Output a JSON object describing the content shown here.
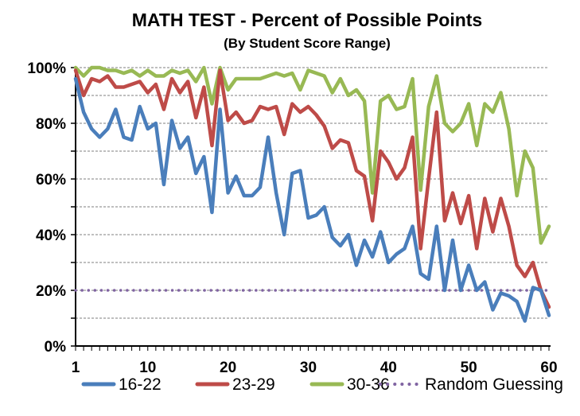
{
  "chart_data": {
    "type": "line",
    "title": "MATH TEST - Percent of Possible Points",
    "subtitle": "(By Student Score Range)",
    "xlabel": "",
    "ylabel": "",
    "xlim": [
      1,
      60
    ],
    "ylim": [
      0,
      100
    ],
    "x_ticks": [
      1,
      10,
      20,
      30,
      40,
      50,
      60
    ],
    "y_ticks": [
      0,
      20,
      40,
      60,
      80,
      100
    ],
    "y_tick_labels": [
      "0%",
      "20%",
      "40%",
      "60%",
      "80%",
      "100%"
    ],
    "grid": "horizontal-dashed",
    "legend_position": "bottom",
    "series": [
      {
        "name": "16-22",
        "color": "#4a7ebb",
        "style": "solid",
        "values": [
          96,
          84,
          78,
          75,
          78,
          85,
          75,
          74,
          86,
          78,
          80,
          58,
          81,
          71,
          75,
          62,
          68,
          48,
          85,
          55,
          61,
          54,
          54,
          57,
          75,
          55,
          40,
          62,
          63,
          46,
          47,
          50,
          39,
          36,
          40,
          29,
          38,
          32,
          41,
          30,
          33,
          35,
          43,
          26,
          24,
          43,
          20,
          38,
          20,
          29,
          20,
          23,
          13,
          19,
          18,
          16,
          9,
          21,
          20,
          11
        ]
      },
      {
        "name": "23-29",
        "color": "#be4b48",
        "style": "solid",
        "values": [
          99,
          90,
          96,
          95,
          97,
          93,
          93,
          94,
          95,
          91,
          94,
          85,
          96,
          91,
          95,
          82,
          93,
          72,
          99,
          81,
          84,
          80,
          81,
          86,
          85,
          86,
          76,
          87,
          84,
          86,
          83,
          79,
          71,
          74,
          73,
          63,
          61,
          45,
          70,
          66,
          60,
          64,
          75,
          35,
          60,
          84,
          45,
          55,
          44,
          54,
          35,
          53,
          41,
          53,
          43,
          29,
          25,
          30,
          20,
          14
        ]
      },
      {
        "name": "30-36",
        "color": "#98b954",
        "style": "solid",
        "values": [
          100,
          97,
          100,
          100,
          99,
          99,
          98,
          99,
          97,
          99,
          97,
          97,
          99,
          98,
          99,
          95,
          100,
          87,
          100,
          92,
          96,
          96,
          96,
          96,
          97,
          98,
          97,
          98,
          92,
          99,
          98,
          97,
          91,
          96,
          90,
          92,
          88,
          55,
          88,
          90,
          85,
          86,
          96,
          56,
          86,
          97,
          80,
          77,
          80,
          87,
          72,
          87,
          84,
          91,
          78,
          54,
          70,
          64,
          37,
          43
        ]
      },
      {
        "name": "Random Guessing",
        "color": "#8064a2",
        "style": "dotted",
        "values": [
          20,
          20,
          20,
          20,
          20,
          20,
          20,
          20,
          20,
          20,
          20,
          20,
          20,
          20,
          20,
          20,
          20,
          20,
          20,
          20,
          20,
          20,
          20,
          20,
          20,
          20,
          20,
          20,
          20,
          20,
          20,
          20,
          20,
          20,
          20,
          20,
          20,
          20,
          20,
          20,
          20,
          20,
          20,
          20,
          20,
          20,
          20,
          20,
          20,
          20,
          20,
          20,
          20,
          20,
          20,
          20,
          20,
          20,
          20,
          20
        ]
      }
    ]
  }
}
